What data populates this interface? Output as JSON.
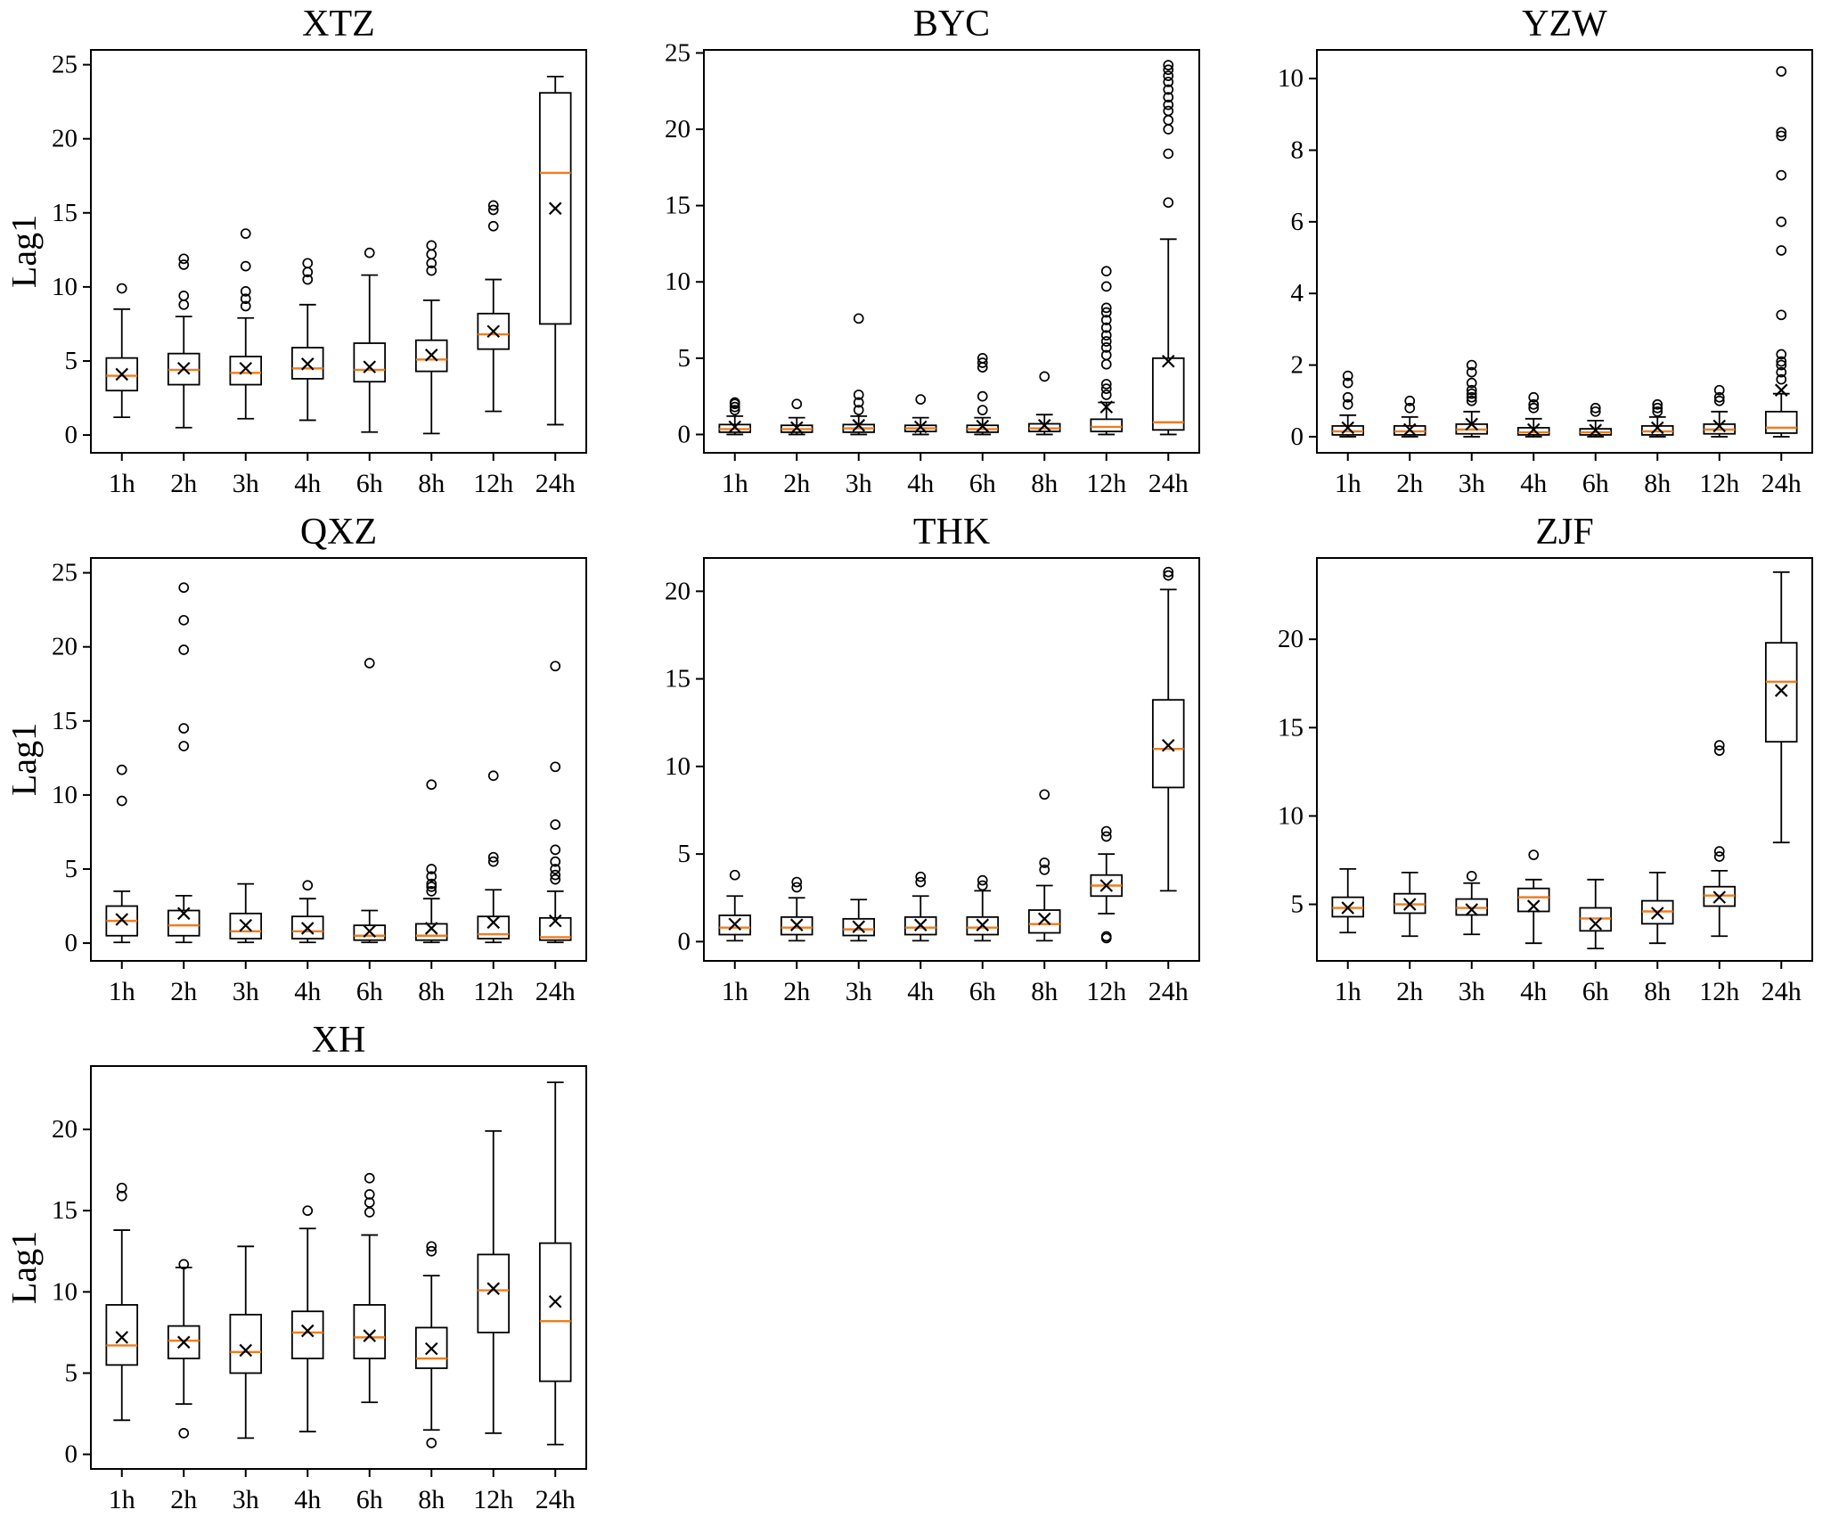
{
  "figure_title": "",
  "chart_data": {
    "type": "boxplot",
    "ylabel": "Lag1",
    "categories": [
      "1h",
      "2h",
      "3h",
      "4h",
      "6h",
      "8h",
      "12h",
      "24h"
    ],
    "median_color": "#ee7d22",
    "box_color": "#000000",
    "panels": [
      {
        "title": "XTZ",
        "show_ylabel": true,
        "ylim": [
          -1.2,
          26
        ],
        "yticks": [
          0,
          5,
          10,
          15,
          20,
          25
        ],
        "boxes": [
          {
            "low": 1.2,
            "q1": 3.0,
            "med": 4.0,
            "q3": 5.2,
            "high": 8.5,
            "mean": 4.1,
            "outliers": [
              9.9
            ]
          },
          {
            "low": 0.5,
            "q1": 3.4,
            "med": 4.4,
            "q3": 5.5,
            "high": 8.0,
            "mean": 4.5,
            "outliers": [
              8.8,
              9.4,
              11.5,
              11.9
            ]
          },
          {
            "low": 1.1,
            "q1": 3.4,
            "med": 4.2,
            "q3": 5.3,
            "high": 7.9,
            "mean": 4.5,
            "outliers": [
              8.7,
              9.2,
              9.7,
              11.4,
              13.6
            ]
          },
          {
            "low": 1.0,
            "q1": 3.8,
            "med": 4.5,
            "q3": 5.9,
            "high": 8.8,
            "mean": 4.8,
            "outliers": [
              10.5,
              11.0,
              11.6
            ]
          },
          {
            "low": 0.2,
            "q1": 3.6,
            "med": 4.4,
            "q3": 6.2,
            "high": 10.8,
            "mean": 4.6,
            "outliers": [
              12.3
            ]
          },
          {
            "low": 0.1,
            "q1": 4.3,
            "med": 5.1,
            "q3": 6.4,
            "high": 9.1,
            "mean": 5.4,
            "outliers": [
              11.1,
              11.6,
              12.2,
              12.8
            ]
          },
          {
            "low": 1.6,
            "q1": 5.8,
            "med": 6.8,
            "q3": 8.2,
            "high": 10.5,
            "mean": 7.0,
            "outliers": [
              14.1,
              15.2,
              15.5
            ]
          },
          {
            "low": 0.7,
            "q1": 7.5,
            "med": 17.7,
            "q3": 23.1,
            "high": 24.2,
            "mean": 15.3,
            "outliers": []
          }
        ]
      },
      {
        "title": "BYC",
        "show_ylabel": false,
        "ylim": [
          -1.2,
          25.2
        ],
        "yticks": [
          0,
          5,
          10,
          15,
          20,
          25
        ],
        "boxes": [
          {
            "low": 0.0,
            "q1": 0.15,
            "med": 0.35,
            "q3": 0.65,
            "high": 1.2,
            "mean": 0.5,
            "outliers": [
              1.6,
              1.8,
              2.0,
              2.1
            ]
          },
          {
            "low": 0.0,
            "q1": 0.15,
            "med": 0.35,
            "q3": 0.6,
            "high": 1.1,
            "mean": 0.45,
            "outliers": [
              2.0
            ]
          },
          {
            "low": 0.0,
            "q1": 0.15,
            "med": 0.4,
            "q3": 0.65,
            "high": 1.2,
            "mean": 0.6,
            "outliers": [
              1.6,
              2.1,
              2.6,
              7.6
            ]
          },
          {
            "low": 0.0,
            "q1": 0.2,
            "med": 0.4,
            "q3": 0.6,
            "high": 1.1,
            "mean": 0.5,
            "outliers": [
              2.3
            ]
          },
          {
            "low": 0.0,
            "q1": 0.15,
            "med": 0.35,
            "q3": 0.6,
            "high": 1.1,
            "mean": 0.55,
            "outliers": [
              1.6,
              2.5,
              4.4,
              4.7,
              5.0
            ]
          },
          {
            "low": 0.0,
            "q1": 0.2,
            "med": 0.4,
            "q3": 0.7,
            "high": 1.3,
            "mean": 0.6,
            "outliers": [
              3.8
            ]
          },
          {
            "low": 0.0,
            "q1": 0.2,
            "med": 0.5,
            "q3": 1.0,
            "high": 2.1,
            "mean": 1.8,
            "outliers": [
              2.6,
              3.0,
              3.3,
              4.6,
              5.2,
              5.7,
              6.1,
              6.5,
              7.0,
              7.5,
              8.0,
              8.3,
              9.7,
              10.7
            ]
          },
          {
            "low": 0.0,
            "q1": 0.3,
            "med": 0.8,
            "q3": 5.0,
            "high": 12.8,
            "mean": 4.8,
            "outliers": [
              15.2,
              18.4,
              20.0,
              20.6,
              21.2,
              21.6,
              22.1,
              22.6,
              23.1,
              23.5,
              23.9,
              24.2
            ]
          }
        ]
      },
      {
        "title": "YZW",
        "show_ylabel": false,
        "ylim": [
          -0.45,
          10.8
        ],
        "yticks": [
          0,
          2,
          4,
          6,
          8,
          10
        ],
        "boxes": [
          {
            "low": 0.0,
            "q1": 0.05,
            "med": 0.15,
            "q3": 0.3,
            "high": 0.6,
            "mean": 0.25,
            "outliers": [
              0.9,
              1.1,
              1.5,
              1.7
            ]
          },
          {
            "low": 0.0,
            "q1": 0.05,
            "med": 0.15,
            "q3": 0.3,
            "high": 0.55,
            "mean": 0.2,
            "outliers": [
              0.8,
              1.0
            ]
          },
          {
            "low": 0.0,
            "q1": 0.08,
            "med": 0.2,
            "q3": 0.35,
            "high": 0.7,
            "mean": 0.35,
            "outliers": [
              1.0,
              1.1,
              1.2,
              1.3,
              1.5,
              1.8,
              2.0
            ]
          },
          {
            "low": 0.0,
            "q1": 0.05,
            "med": 0.12,
            "q3": 0.25,
            "high": 0.5,
            "mean": 0.2,
            "outliers": [
              0.8,
              0.9,
              1.1
            ]
          },
          {
            "low": 0.0,
            "q1": 0.05,
            "med": 0.12,
            "q3": 0.22,
            "high": 0.45,
            "mean": 0.18,
            "outliers": [
              0.7,
              0.8
            ]
          },
          {
            "low": 0.0,
            "q1": 0.05,
            "med": 0.15,
            "q3": 0.3,
            "high": 0.55,
            "mean": 0.25,
            "outliers": [
              0.7,
              0.8,
              0.9
            ]
          },
          {
            "low": 0.0,
            "q1": 0.08,
            "med": 0.2,
            "q3": 0.35,
            "high": 0.7,
            "mean": 0.3,
            "outliers": [
              1.0,
              1.1,
              1.3
            ]
          },
          {
            "low": 0.0,
            "q1": 0.1,
            "med": 0.25,
            "q3": 0.7,
            "high": 1.2,
            "mean": 1.3,
            "outliers": [
              1.6,
              1.8,
              2.0,
              2.1,
              2.3,
              3.4,
              5.2,
              6.0,
              7.3,
              8.4,
              8.5,
              10.2
            ]
          }
        ]
      },
      {
        "title": "QXZ",
        "show_ylabel": true,
        "ylim": [
          -1.2,
          26
        ],
        "yticks": [
          0,
          5,
          10,
          15,
          20,
          25
        ],
        "boxes": [
          {
            "low": 0.05,
            "q1": 0.5,
            "med": 1.5,
            "q3": 2.5,
            "high": 3.5,
            "mean": 1.6,
            "outliers": [
              9.6,
              11.7
            ]
          },
          {
            "low": 0.05,
            "q1": 0.5,
            "med": 1.2,
            "q3": 2.2,
            "high": 3.2,
            "mean": 2.0,
            "outliers": [
              13.3,
              14.5,
              19.8,
              21.8,
              24.0
            ]
          },
          {
            "low": 0.05,
            "q1": 0.3,
            "med": 0.8,
            "q3": 2.0,
            "high": 4.0,
            "mean": 1.2,
            "outliers": []
          },
          {
            "low": 0.05,
            "q1": 0.3,
            "med": 0.8,
            "q3": 1.8,
            "high": 3.0,
            "mean": 1.0,
            "outliers": [
              3.9
            ]
          },
          {
            "low": 0.05,
            "q1": 0.2,
            "med": 0.5,
            "q3": 1.2,
            "high": 2.2,
            "mean": 0.8,
            "outliers": [
              18.9
            ]
          },
          {
            "low": 0.05,
            "q1": 0.2,
            "med": 0.5,
            "q3": 1.3,
            "high": 3.0,
            "mean": 1.0,
            "outliers": [
              3.5,
              3.8,
              4.0,
              4.5,
              5.0,
              10.7
            ]
          },
          {
            "low": 0.05,
            "q1": 0.3,
            "med": 0.6,
            "q3": 1.8,
            "high": 3.6,
            "mean": 1.4,
            "outliers": [
              5.5,
              5.8,
              11.3
            ]
          },
          {
            "low": 0.05,
            "q1": 0.2,
            "med": 0.4,
            "q3": 1.7,
            "high": 3.5,
            "mean": 1.5,
            "outliers": [
              4.3,
              4.6,
              5.0,
              5.5,
              6.3,
              8.0,
              11.9,
              18.7
            ]
          }
        ]
      },
      {
        "title": "THK",
        "show_ylabel": false,
        "ylim": [
          -1.1,
          21.9
        ],
        "yticks": [
          0,
          5,
          10,
          15,
          20
        ],
        "boxes": [
          {
            "low": 0.05,
            "q1": 0.4,
            "med": 0.8,
            "q3": 1.5,
            "high": 2.6,
            "mean": 1.0,
            "outliers": [
              3.8
            ]
          },
          {
            "low": 0.05,
            "q1": 0.4,
            "med": 0.8,
            "q3": 1.4,
            "high": 2.5,
            "mean": 0.95,
            "outliers": [
              3.1,
              3.4
            ]
          },
          {
            "low": 0.05,
            "q1": 0.35,
            "med": 0.7,
            "q3": 1.3,
            "high": 2.4,
            "mean": 0.85,
            "outliers": []
          },
          {
            "low": 0.05,
            "q1": 0.4,
            "med": 0.8,
            "q3": 1.4,
            "high": 2.6,
            "mean": 0.95,
            "outliers": [
              3.4,
              3.7
            ]
          },
          {
            "low": 0.05,
            "q1": 0.4,
            "med": 0.8,
            "q3": 1.4,
            "high": 2.9,
            "mean": 0.95,
            "outliers": [
              3.2,
              3.5
            ]
          },
          {
            "low": 0.05,
            "q1": 0.5,
            "med": 1.0,
            "q3": 1.8,
            "high": 3.2,
            "mean": 1.3,
            "outliers": [
              4.1,
              4.5,
              8.4
            ]
          },
          {
            "low": 1.6,
            "q1": 2.6,
            "med": 3.2,
            "q3": 3.8,
            "high": 5.0,
            "mean": 3.2,
            "outliers": [
              0.2,
              0.3,
              6.0,
              6.3
            ]
          },
          {
            "low": 2.9,
            "q1": 8.8,
            "med": 11.0,
            "q3": 13.8,
            "high": 20.1,
            "mean": 11.2,
            "outliers": [
              20.9,
              21.1
            ]
          }
        ]
      },
      {
        "title": "ZJF",
        "show_ylabel": false,
        "ylim": [
          1.8,
          24.6
        ],
        "yticks": [
          5,
          10,
          15,
          20
        ],
        "boxes": [
          {
            "low": 3.4,
            "q1": 4.3,
            "med": 4.8,
            "q3": 5.4,
            "high": 7.0,
            "mean": 4.8,
            "outliers": []
          },
          {
            "low": 3.2,
            "q1": 4.5,
            "med": 5.0,
            "q3": 5.6,
            "high": 6.8,
            "mean": 5.0,
            "outliers": []
          },
          {
            "low": 3.3,
            "q1": 4.4,
            "med": 4.8,
            "q3": 5.3,
            "high": 6.2,
            "mean": 4.7,
            "outliers": [
              6.6
            ]
          },
          {
            "low": 2.8,
            "q1": 4.6,
            "med": 5.4,
            "q3": 5.9,
            "high": 6.4,
            "mean": 4.9,
            "outliers": [
              7.8
            ]
          },
          {
            "low": 2.5,
            "q1": 3.5,
            "med": 4.2,
            "q3": 4.8,
            "high": 6.4,
            "mean": 3.9,
            "outliers": []
          },
          {
            "low": 2.8,
            "q1": 3.9,
            "med": 4.6,
            "q3": 5.2,
            "high": 6.8,
            "mean": 4.5,
            "outliers": []
          },
          {
            "low": 3.2,
            "q1": 4.9,
            "med": 5.5,
            "q3": 6.0,
            "high": 6.9,
            "mean": 5.4,
            "outliers": [
              7.7,
              8.0,
              13.7,
              14.0
            ]
          },
          {
            "low": 8.5,
            "q1": 14.2,
            "med": 17.6,
            "q3": 19.8,
            "high": 23.8,
            "mean": 17.1,
            "outliers": []
          }
        ]
      },
      {
        "title": "XH",
        "show_ylabel": true,
        "ylim": [
          -0.9,
          23.9
        ],
        "yticks": [
          0,
          5,
          10,
          15,
          20
        ],
        "boxes": [
          {
            "low": 2.1,
            "q1": 5.5,
            "med": 6.7,
            "q3": 9.2,
            "high": 13.8,
            "mean": 7.2,
            "outliers": [
              15.9,
              16.4
            ]
          },
          {
            "low": 3.1,
            "q1": 5.9,
            "med": 7.0,
            "q3": 7.9,
            "high": 11.5,
            "mean": 6.9,
            "outliers": [
              1.3,
              11.7
            ]
          },
          {
            "low": 1.0,
            "q1": 5.0,
            "med": 6.3,
            "q3": 8.6,
            "high": 12.8,
            "mean": 6.4,
            "outliers": []
          },
          {
            "low": 1.4,
            "q1": 5.9,
            "med": 7.5,
            "q3": 8.8,
            "high": 13.9,
            "mean": 7.6,
            "outliers": [
              15.0
            ]
          },
          {
            "low": 3.2,
            "q1": 5.9,
            "med": 7.2,
            "q3": 9.2,
            "high": 13.5,
            "mean": 7.3,
            "outliers": [
              14.9,
              15.5,
              16.0,
              17.0
            ]
          },
          {
            "low": 1.5,
            "q1": 5.3,
            "med": 5.9,
            "q3": 7.8,
            "high": 11.0,
            "mean": 6.5,
            "outliers": [
              0.7,
              12.5,
              12.8
            ]
          },
          {
            "low": 1.3,
            "q1": 7.5,
            "med": 10.1,
            "q3": 12.3,
            "high": 19.9,
            "mean": 10.2,
            "outliers": []
          },
          {
            "low": 0.6,
            "q1": 4.5,
            "med": 8.2,
            "q3": 13.0,
            "high": 22.9,
            "mean": 9.4,
            "outliers": []
          }
        ]
      }
    ]
  }
}
